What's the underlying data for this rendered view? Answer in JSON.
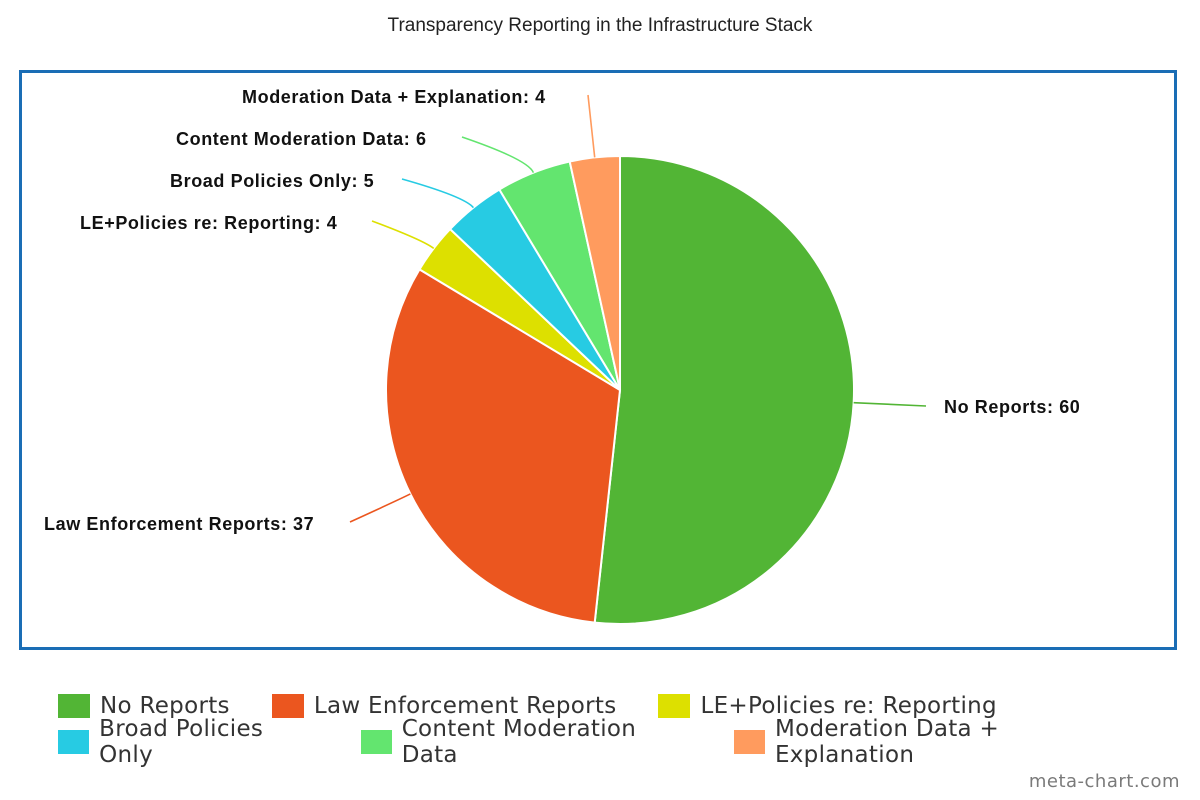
{
  "chart_data": {
    "type": "pie",
    "title": "Transparency Reporting in the Infrastructure Stack",
    "categories": [
      "No Reports",
      "Law Enforcement Reports",
      "LE+Policies re: Reporting",
      "Broad Policies Only",
      "Content Moderation Data",
      "Moderation Data + Explanation"
    ],
    "values": [
      60,
      37,
      4,
      5,
      6,
      4
    ],
    "colors": [
      "#52b535",
      "#eb561f",
      "#dde000",
      "#27cbe3",
      "#63e56f",
      "#ff9b5e"
    ],
    "data_labels": [
      "No Reports: 60",
      "Law Enforcement Reports: 37",
      "LE+Policies re: Reporting: 4",
      "Broad Policies Only: 5",
      "Content Moderation Data: 6",
      "Moderation Data + Explanation: 4"
    ],
    "legend_position": "bottom",
    "start_angle": "top, clockwise"
  },
  "credit": "meta-chart.com"
}
